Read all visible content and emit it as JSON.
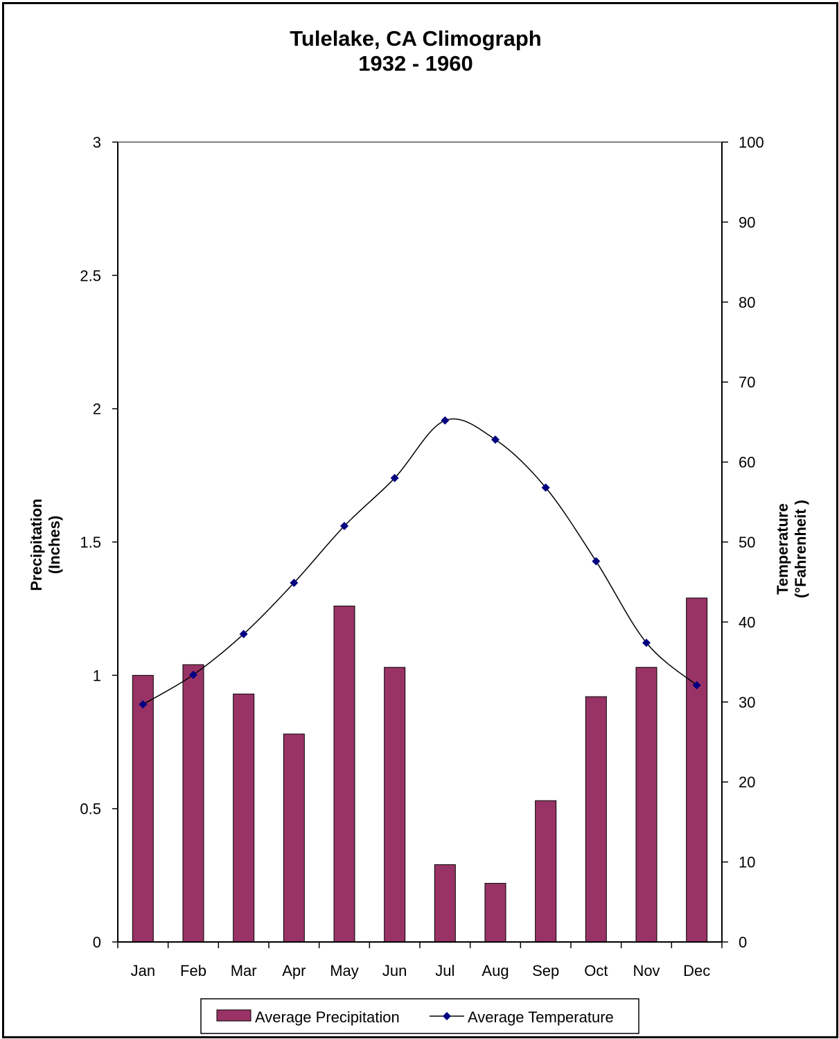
{
  "chart_data": {
    "type": "bar",
    "title": "Tulelake, CA  Climograph",
    "subtitle": "1932 - 1960",
    "categories": [
      "Jan",
      "Feb",
      "Mar",
      "Apr",
      "May",
      "Jun",
      "Jul",
      "Aug",
      "Sep",
      "Oct",
      "Nov",
      "Dec"
    ],
    "series": [
      {
        "name": "Average Precipitation",
        "type": "bar",
        "axis": "left",
        "color": "#993366",
        "values": [
          1.0,
          1.04,
          0.93,
          0.78,
          1.26,
          1.03,
          0.29,
          0.22,
          0.53,
          0.92,
          1.03,
          1.29
        ]
      },
      {
        "name": "Average Temperature",
        "type": "line",
        "axis": "right",
        "smooth": true,
        "marker": "diamond",
        "color": "#000080",
        "values": [
          29.7,
          33.4,
          38.5,
          44.9,
          52.0,
          58.0,
          65.2,
          62.8,
          56.8,
          47.6,
          37.4,
          32.1
        ]
      }
    ],
    "ylabel_left_line1": "Precipitation",
    "ylabel_left_line2": "(Inches)",
    "ylabel_right_line1": "Temperature",
    "ylabel_right_line2": "(°Fahrenheit )",
    "ylim_left": [
      0,
      3
    ],
    "yticks_left": [
      "0",
      "0.5",
      "1",
      "1.5",
      "2",
      "2.5",
      "3"
    ],
    "ylim_right": [
      0,
      100
    ],
    "yticks_right": [
      "0",
      "10",
      "20",
      "30",
      "40",
      "50",
      "60",
      "70",
      "80",
      "90",
      "100"
    ],
    "grid": false,
    "legend_position": "bottom"
  }
}
